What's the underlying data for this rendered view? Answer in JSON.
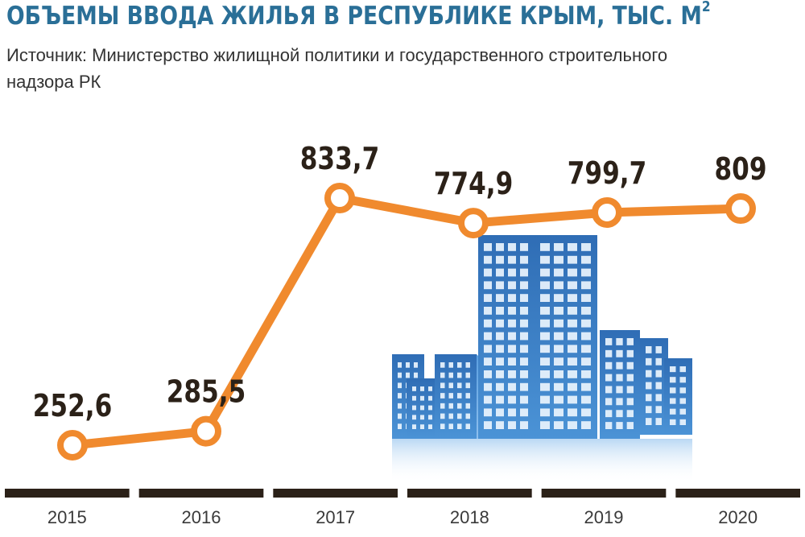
{
  "header": {
    "title": "ОБЪЕМЫ ВВОДА ЖИЛЬЯ В РЕСПУБЛИКЕ КРЫМ, ТЫС. М",
    "title_sup": "2",
    "subtitle": "Источник: Министерство жилищной политики и государственного строительного надзора РК"
  },
  "colors": {
    "title": "#2a6f97",
    "line": "#f08a2e",
    "marker_fill": "#ffffff",
    "value_labels": "#2b2118",
    "axis_bars": "#2b2118",
    "building_blue": "#3d7fc6"
  },
  "illustration": "building-illustration",
  "chart_data": {
    "type": "line",
    "title": "ОБЪЕМЫ ВВОДА ЖИЛЬЯ В РЕСПУБЛИКЕ КРЫМ, ТЫС. М2",
    "xlabel": "",
    "ylabel": "",
    "categories": [
      "2015",
      "2016",
      "2017",
      "2018",
      "2019",
      "2020"
    ],
    "values": [
      252.6,
      285.5,
      833.7,
      774.9,
      799.7,
      809
    ],
    "value_labels": [
      "252,6",
      "285,5",
      "833,7",
      "774,9",
      "799,7",
      "809"
    ],
    "grid": false,
    "legend": "none"
  }
}
